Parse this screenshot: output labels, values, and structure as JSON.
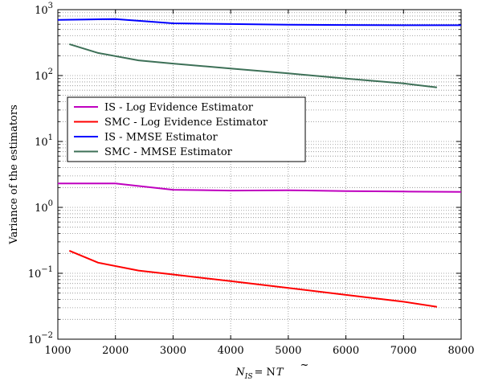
{
  "chart_data": {
    "type": "line",
    "title": "",
    "xlabel": "N_{IS} = N T̃",
    "xlabel_parts": {
      "main": "N",
      "sub": "IS",
      "rhs": "= N",
      "tilde_var": "T"
    },
    "ylabel": "Variance of the estimators",
    "xlim": [
      1000,
      8000
    ],
    "ylim": [
      0.01,
      1000
    ],
    "yscale": "log",
    "grid": true,
    "legend_position": "center-left",
    "x_ticks": [
      "1000",
      "2000",
      "3000",
      "4000",
      "5000",
      "6000",
      "7000",
      "8000"
    ],
    "y_ticks": [
      {
        "base": "10",
        "exp": "−2"
      },
      {
        "base": "10",
        "exp": "−1"
      },
      {
        "base": "10",
        "exp": "0"
      },
      {
        "base": "10",
        "exp": "1"
      },
      {
        "base": "10",
        "exp": "2"
      },
      {
        "base": "10",
        "exp": "3"
      }
    ],
    "series": [
      {
        "name": "IS - Log Evidence Estimator",
        "color": "#bf00bf",
        "x": [
          1000,
          2000,
          3000,
          4000,
          5000,
          6000,
          7000,
          8000
        ],
        "y": [
          2.3,
          2.3,
          1.85,
          1.8,
          1.82,
          1.77,
          1.74,
          1.72
        ]
      },
      {
        "name": "SMC - Log Evidence Estimator",
        "color": "#ff0000",
        "x": [
          1200,
          1700,
          2400,
          3000,
          4000,
          5000,
          6000,
          7000,
          7580
        ],
        "y": [
          0.22,
          0.145,
          0.11,
          0.096,
          0.076,
          0.06,
          0.047,
          0.037,
          0.031
        ]
      },
      {
        "name": "IS - MMSE Estimator",
        "color": "#0000ff",
        "x": [
          1000,
          1500,
          2000,
          3000,
          4000,
          5000,
          6000,
          7000,
          8000
        ],
        "y": [
          700,
          710,
          720,
          620,
          605,
          590,
          585,
          580,
          580
        ]
      },
      {
        "name": "SMC - MMSE Estimator",
        "color": "#3d7057",
        "x": [
          1200,
          1700,
          2400,
          3000,
          4000,
          5000,
          6000,
          7000,
          7580
        ],
        "y": [
          300,
          220,
          170,
          152,
          128,
          108,
          90,
          76,
          66
        ]
      }
    ]
  }
}
